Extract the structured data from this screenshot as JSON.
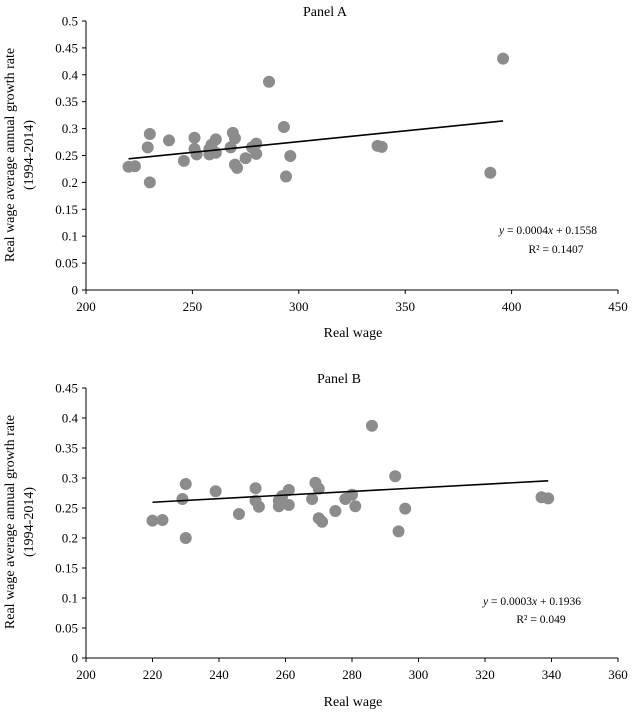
{
  "chart_data": [
    {
      "type": "scatter",
      "title": "Panel A",
      "xlabel": "Real wage",
      "ylabel": "Real wage average annual growth rate",
      "ylabel_sub": "(1994-2014)",
      "xlim": [
        200,
        450
      ],
      "ylim": [
        0,
        0.5
      ],
      "x_ticks": [
        200,
        250,
        300,
        350,
        400,
        450
      ],
      "x_tick_labels": [
        "200",
        "250",
        "300",
        "350",
        "400",
        "450"
      ],
      "y_ticks": [
        0,
        0.05,
        0.1,
        0.15,
        0.2,
        0.25,
        0.3,
        0.35,
        0.4,
        0.45,
        0.5
      ],
      "y_tick_labels": [
        "0",
        "0.05",
        "0.1",
        "0.15",
        "0.2",
        "0.25",
        "0.3",
        "0.35",
        "0.4",
        "0.45",
        "0.5"
      ],
      "points": [
        {
          "x": 220,
          "y": 0.229
        },
        {
          "x": 223,
          "y": 0.23
        },
        {
          "x": 229,
          "y": 0.265
        },
        {
          "x": 230,
          "y": 0.29
        },
        {
          "x": 230,
          "y": 0.2
        },
        {
          "x": 239,
          "y": 0.278
        },
        {
          "x": 246,
          "y": 0.24
        },
        {
          "x": 251,
          "y": 0.283
        },
        {
          "x": 251,
          "y": 0.262
        },
        {
          "x": 252,
          "y": 0.252
        },
        {
          "x": 258,
          "y": 0.252
        },
        {
          "x": 258,
          "y": 0.262
        },
        {
          "x": 259,
          "y": 0.27
        },
        {
          "x": 261,
          "y": 0.255
        },
        {
          "x": 261,
          "y": 0.28
        },
        {
          "x": 268,
          "y": 0.265
        },
        {
          "x": 269,
          "y": 0.292
        },
        {
          "x": 270,
          "y": 0.282
        },
        {
          "x": 270,
          "y": 0.233
        },
        {
          "x": 271,
          "y": 0.227
        },
        {
          "x": 275,
          "y": 0.245
        },
        {
          "x": 278,
          "y": 0.265
        },
        {
          "x": 280,
          "y": 0.272
        },
        {
          "x": 280,
          "y": 0.253
        },
        {
          "x": 286,
          "y": 0.387
        },
        {
          "x": 293,
          "y": 0.303
        },
        {
          "x": 294,
          "y": 0.211
        },
        {
          "x": 296,
          "y": 0.249
        },
        {
          "x": 337,
          "y": 0.268
        },
        {
          "x": 339,
          "y": 0.266
        },
        {
          "x": 390,
          "y": 0.218
        },
        {
          "x": 396,
          "y": 0.43
        }
      ],
      "trendline": {
        "slope": 0.0004,
        "intercept": 0.1558,
        "x_start": 220,
        "x_end": 396
      },
      "equation": "y = 0.0004x + 0.1558",
      "r2": "R² = 0.1407"
    },
    {
      "type": "scatter",
      "title": "Panel B",
      "xlabel": "Real wage",
      "ylabel": "Real wage average annual growth rate",
      "ylabel_sub": "(1994-2014)",
      "xlim": [
        200,
        360
      ],
      "ylim": [
        0,
        0.45
      ],
      "x_ticks": [
        200,
        220,
        240,
        260,
        280,
        300,
        320,
        340,
        360
      ],
      "x_tick_labels": [
        "200",
        "220",
        "240",
        "260",
        "280",
        "300",
        "320",
        "340",
        "360"
      ],
      "y_ticks": [
        0,
        0.05,
        0.1,
        0.15,
        0.2,
        0.25,
        0.3,
        0.35,
        0.4,
        0.45
      ],
      "y_tick_labels": [
        "0",
        "0.05",
        "0.1",
        "0.15",
        "0.2",
        "0.25",
        "0.3",
        "0.35",
        "0.4",
        "0.45"
      ],
      "points": [
        {
          "x": 220,
          "y": 0.229
        },
        {
          "x": 223,
          "y": 0.23
        },
        {
          "x": 229,
          "y": 0.265
        },
        {
          "x": 230,
          "y": 0.29
        },
        {
          "x": 230,
          "y": 0.2
        },
        {
          "x": 239,
          "y": 0.278
        },
        {
          "x": 246,
          "y": 0.24
        },
        {
          "x": 251,
          "y": 0.283
        },
        {
          "x": 251,
          "y": 0.262
        },
        {
          "x": 252,
          "y": 0.252
        },
        {
          "x": 258,
          "y": 0.262
        },
        {
          "x": 258,
          "y": 0.253
        },
        {
          "x": 259,
          "y": 0.27
        },
        {
          "x": 261,
          "y": 0.255
        },
        {
          "x": 261,
          "y": 0.28
        },
        {
          "x": 268,
          "y": 0.265
        },
        {
          "x": 269,
          "y": 0.292
        },
        {
          "x": 270,
          "y": 0.282
        },
        {
          "x": 270,
          "y": 0.233
        },
        {
          "x": 271,
          "y": 0.227
        },
        {
          "x": 275,
          "y": 0.245
        },
        {
          "x": 278,
          "y": 0.265
        },
        {
          "x": 280,
          "y": 0.272
        },
        {
          "x": 281,
          "y": 0.253
        },
        {
          "x": 286,
          "y": 0.387
        },
        {
          "x": 293,
          "y": 0.303
        },
        {
          "x": 294,
          "y": 0.211
        },
        {
          "x": 296,
          "y": 0.249
        },
        {
          "x": 337,
          "y": 0.268
        },
        {
          "x": 339,
          "y": 0.266
        }
      ],
      "trendline": {
        "slope": 0.0003,
        "intercept": 0.1936,
        "x_start": 220,
        "x_end": 339
      },
      "equation": "y = 0.0003x + 0.1936",
      "r2": "R² = 0.049"
    }
  ]
}
